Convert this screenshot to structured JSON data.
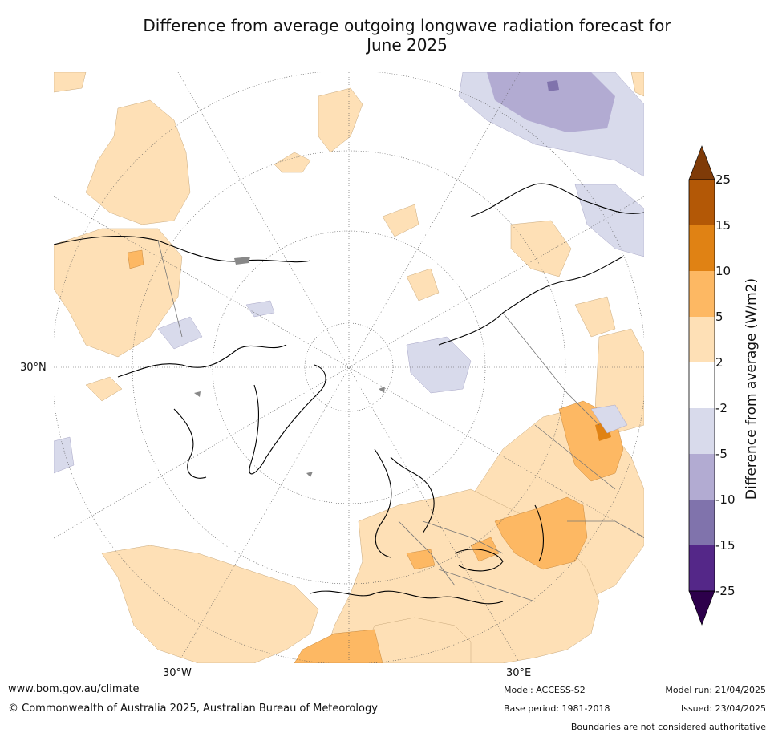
{
  "title_line1": "Difference from average outgoing longwave radiation forecast for",
  "title_line2": "June 2025",
  "axis_labels": {
    "lat_30n": "30°N",
    "lon_30w": "30°W",
    "lon_30e": "30°E"
  },
  "colorbar": {
    "title": "Difference from average (W/m2)",
    "ticks": [
      "25",
      "15",
      "10",
      "5",
      "2",
      "-2",
      "-5",
      "-10",
      "-15",
      "-25"
    ],
    "colors": {
      "above_25": "#7f3b08",
      "15_25": "#b35806",
      "10_15": "#e08214",
      "5_10": "#fdb863",
      "2_5": "#fee0b6",
      "neutral": "#ffffff",
      "m5_m2": "#d8daeb",
      "m10_m5": "#b2abd2",
      "m15_m10": "#8073ac",
      "m25_m15": "#542788",
      "below_m25": "#2d004b"
    }
  },
  "footer": {
    "website": "www.bom.gov.au/climate",
    "copyright": "© Commonwealth of Australia 2025, Australian Bureau of Meteorology",
    "model": "Model: ACCESS-S2",
    "base_period": "Base period: 1981-2018",
    "model_run": "Model run: 21/04/2025",
    "issued": "Issued: 23/04/2025",
    "disclaimer": "Boundaries are not considered authoritative"
  }
}
